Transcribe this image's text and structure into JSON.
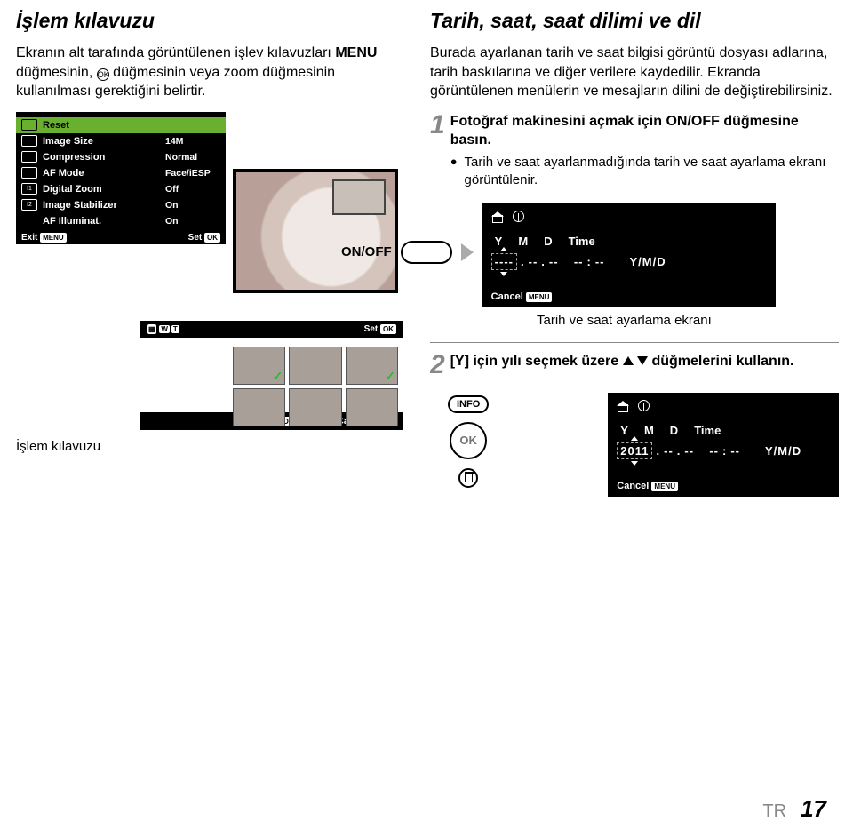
{
  "left": {
    "title": "İşlem kılavuzu",
    "intro_a": "Ekranın alt tarafında görüntülenen işlev kılavuzları ",
    "intro_b": "MENU",
    "intro_c": " düğmesinin, ",
    "intro_d": " düğmesinin veya zoom düğmesinin kullanılması gerektiğini belirtir.",
    "ok_glyph": "OK",
    "menu": {
      "items": [
        {
          "icon": "📷",
          "label": "Reset",
          "val": ""
        },
        {
          "icon": "📷",
          "label": "Image Size",
          "val": "14M"
        },
        {
          "icon": "🗜",
          "label": "Compression",
          "val": "Normal"
        },
        {
          "icon": "▶",
          "label": "AF Mode",
          "val": "Face/iESP"
        },
        {
          "icon": "f1",
          "label": "Digital Zoom",
          "val": "Off"
        },
        {
          "icon": "f2",
          "label": "Image Stabilizer",
          "val": "On"
        },
        {
          "icon": "",
          "label": "AF Illuminat.",
          "val": "On"
        }
      ],
      "exit": "Exit",
      "set": "Set",
      "menu_btn": "MENU",
      "ok_btn": "OK",
      "w": "W",
      "t": "T",
      "erase": "Erase/Cancel"
    },
    "caption": "İşlem kılavuzu"
  },
  "right": {
    "title": "Tarih, saat, saat dilimi ve dil",
    "intro": "Burada ayarlanan tarih ve saat bilgisi görüntü dosyası adlarına, tarih baskılarına ve diğer verilere kaydedilir. Ekranda görüntülenen menülerin ve mesajların dilini de değiştirebilirsiniz.",
    "step1_num": "1",
    "step1_b1": "Fotoğraf makinesini açmak için ",
    "step1_b2": "ON/OFF",
    "step1_b3": " düğmesine basın.",
    "step1_bullet": "Tarih ve saat ayarlanmadığında tarih ve saat ayarlama ekranı görüntülenir.",
    "onoff": "ON/OFF",
    "lcd": {
      "y": "Y",
      "m": "M",
      "d": "D",
      "time": "Time",
      "dashes4": "----",
      "dash2": "--",
      "ymd": "Y/M/D",
      "cancel": "Cancel",
      "menu_btn": "MENU",
      "year": "2011"
    },
    "sub_caption": "Tarih ve saat ayarlama ekranı",
    "step2_num": "2",
    "step2_a": "[Y] için yılı seçmek üzere ",
    "step2_b": " düğmelerini kullanın.",
    "info": "INFO",
    "ok": "OK"
  },
  "foot": {
    "tr": "TR",
    "pg": "17"
  }
}
